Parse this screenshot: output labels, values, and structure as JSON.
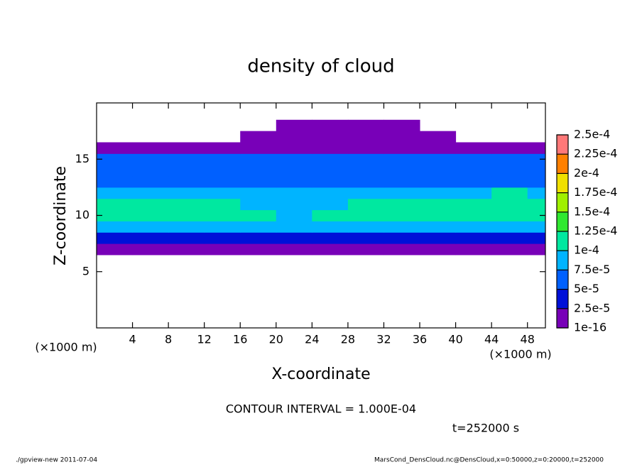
{
  "chart_data": {
    "type": "heatmap",
    "title": "density of cloud",
    "x_label": "X-coordinate",
    "y_label": "Z-coordinate",
    "x_unit": "(×1000 m)",
    "y_unit": "(×1000 m)",
    "annotation": "CONTOUR INTERVAL = 1.000E-04",
    "time_label": "t=252000 s",
    "footer_left": "./gpview-new  2011-07-04",
    "footer_right": "MarsCond_DensCloud.nc@DensCloud,x=0:50000,z=0:20000,t=252000",
    "xlim": [
      0,
      50
    ],
    "ylim": [
      0,
      20
    ],
    "xticks": [
      4,
      8,
      12,
      16,
      20,
      24,
      28,
      32,
      36,
      40,
      44,
      48
    ],
    "yticks": [
      5,
      10,
      15
    ],
    "x_bins": [
      0,
      4,
      8,
      12,
      16,
      20,
      24,
      28,
      32,
      36,
      40,
      44,
      48,
      50
    ],
    "y_bins": [
      6.5,
      7.5,
      8.5,
      9.5,
      10.5,
      11.5,
      12.5,
      13.5,
      14.5,
      15.5,
      16.5,
      17.5,
      18.5
    ],
    "z": [
      [
        1e-05,
        1e-05,
        1e-05,
        1e-05,
        1e-05,
        1e-05,
        1e-05,
        1e-05,
        1e-05,
        1e-05,
        1e-05,
        1e-05,
        1e-05
      ],
      [
        3e-05,
        3e-05,
        3e-05,
        3e-05,
        3e-05,
        3e-05,
        3e-05,
        3e-05,
        3e-05,
        3e-05,
        3e-05,
        3e-05,
        3e-05
      ],
      [
        8e-05,
        8e-05,
        8e-05,
        8e-05,
        8e-05,
        8e-05,
        8e-05,
        8e-05,
        8e-05,
        8e-05,
        8e-05,
        8e-05,
        8e-05
      ],
      [
        0.00011,
        0.00011,
        0.00011,
        0.000105,
        0.000105,
        8e-05,
        0.000105,
        0.000105,
        0.000105,
        0.000105,
        0.000105,
        0.000105,
        0.000105
      ],
      [
        0.00011,
        0.00011,
        0.00011,
        0.000105,
        9e-05,
        8e-05,
        8e-05,
        0.000105,
        0.000105,
        0.000105,
        0.000105,
        0.000105,
        0.000105
      ],
      [
        9e-05,
        9e-05,
        8e-05,
        8e-05,
        8e-05,
        8e-05,
        8e-05,
        8e-05,
        8e-05,
        8e-05,
        8e-05,
        0.0001,
        9e-05
      ],
      [
        7e-05,
        7e-05,
        7e-05,
        7e-05,
        7e-05,
        7e-05,
        7e-05,
        7e-05,
        7e-05,
        7e-05,
        7e-05,
        7e-05,
        7e-05
      ],
      [
        6e-05,
        6e-05,
        6e-05,
        6e-05,
        6e-05,
        6e-05,
        6e-05,
        6e-05,
        6e-05,
        6e-05,
        6e-05,
        6e-05,
        6e-05
      ],
      [
        5e-05,
        5e-05,
        5e-05,
        5e-05,
        5e-05,
        5e-05,
        5e-05,
        5e-05,
        5e-05,
        5e-05,
        5e-05,
        5e-05,
        5e-05
      ],
      [
        2e-05,
        2e-05,
        2e-05,
        2e-05,
        2e-05,
        2e-05,
        2e-05,
        2e-05,
        2e-05,
        2e-05,
        2e-05,
        2e-05,
        2e-05
      ],
      [
        null,
        null,
        null,
        null,
        1e-05,
        1e-05,
        1e-05,
        1e-05,
        1e-05,
        1e-05,
        null,
        null,
        null
      ],
      [
        null,
        null,
        null,
        null,
        null,
        1e-05,
        1e-05,
        1e-05,
        1e-05,
        null,
        null,
        null,
        null
      ]
    ],
    "levels": [
      {
        "value": 1e-16,
        "label": "1e-16"
      },
      {
        "value": 2.5e-05,
        "label": "2.5e-5"
      },
      {
        "value": 5e-05,
        "label": "5e-5"
      },
      {
        "value": 7.5e-05,
        "label": "7.5e-5"
      },
      {
        "value": 0.0001,
        "label": "1e-4"
      },
      {
        "value": 0.000125,
        "label": "1.25e-4"
      },
      {
        "value": 0.00015,
        "label": "1.5e-4"
      },
      {
        "value": 0.000175,
        "label": "1.75e-4"
      },
      {
        "value": 0.0002,
        "label": "2e-4"
      },
      {
        "value": 0.000225,
        "label": "2.25e-4"
      },
      {
        "value": 0.00025,
        "label": "2.5e-4"
      }
    ],
    "colors": [
      "#7800b8",
      "#0010d8",
      "#0060ff",
      "#00b4ff",
      "#00e8a0",
      "#30e830",
      "#a0f000",
      "#f0e000",
      "#ff8000",
      "#ff7878"
    ]
  }
}
